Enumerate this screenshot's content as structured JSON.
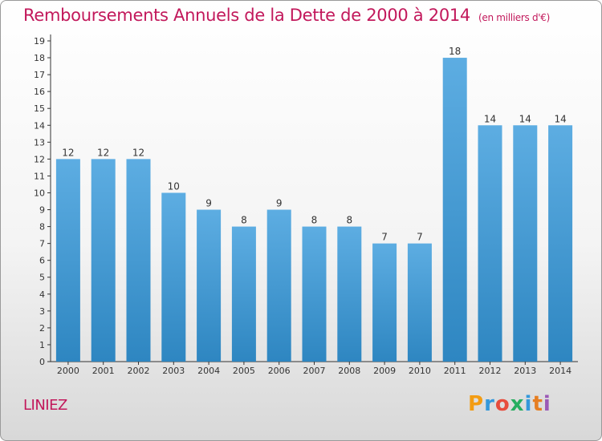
{
  "title": "Remboursements Annuels de la Dette de 2000 à 2014",
  "unit": "(en milliers d'€)",
  "commune": "LINIEZ",
  "logo": {
    "letters": [
      "P",
      "r",
      "o",
      "x",
      "i",
      "t",
      "i"
    ],
    "colors": [
      "#f39c12",
      "#3498db",
      "#e74c3c",
      "#27ae60",
      "#3498db",
      "#e67e22",
      "#9b59b6"
    ]
  },
  "colors": {
    "bar_light": "#5dade2",
    "bar_dark": "#2e86c1",
    "title": "#c2185b"
  },
  "chart_data": {
    "type": "bar",
    "categories": [
      "2000",
      "2001",
      "2002",
      "2003",
      "2004",
      "2005",
      "2006",
      "2007",
      "2008",
      "2009",
      "2010",
      "2011",
      "2012",
      "2013",
      "2014"
    ],
    "values": [
      12,
      12,
      12,
      10,
      9,
      8,
      9,
      8,
      8,
      7,
      7,
      18,
      14,
      14,
      14
    ],
    "ylim": [
      0,
      19
    ],
    "yticks": [
      0,
      1,
      2,
      3,
      4,
      5,
      6,
      7,
      8,
      9,
      10,
      11,
      12,
      13,
      14,
      15,
      16,
      17,
      18,
      19
    ],
    "grid": false,
    "legend": "none"
  }
}
